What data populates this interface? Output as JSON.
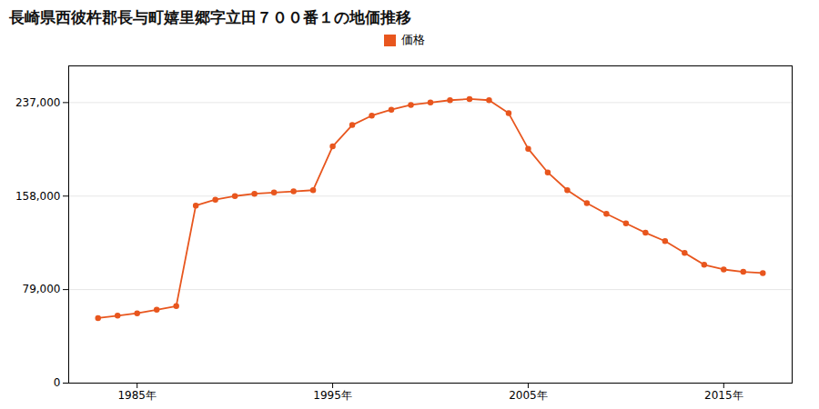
{
  "chart_data": {
    "type": "line",
    "title": "長崎県西彼杵郡長与町嬉里郷字立田７００番１の地価推移",
    "x": [
      1983,
      1984,
      1985,
      1986,
      1987,
      1988,
      1989,
      1990,
      1991,
      1992,
      1993,
      1994,
      1995,
      1996,
      1997,
      1998,
      1999,
      2000,
      2001,
      2002,
      2003,
      2004,
      2005,
      2006,
      2007,
      2008,
      2009,
      2010,
      2011,
      2012,
      2013,
      2014,
      2015,
      2016,
      2017
    ],
    "series": [
      {
        "name": "価格",
        "color": "#e8561e",
        "marker": "circle",
        "line_style": "solid",
        "values": [
          55000,
          57000,
          59000,
          62000,
          65000,
          150000,
          155000,
          158000,
          160000,
          161000,
          162000,
          163000,
          200000,
          218000,
          226000,
          231000,
          235000,
          237000,
          239000,
          240000,
          239000,
          228000,
          198000,
          178000,
          163000,
          152000,
          143000,
          135000,
          127000,
          120000,
          110000,
          100000,
          96000,
          94000,
          93000
        ]
      }
    ],
    "xlim": [
      1981.5,
      2018.5
    ],
    "xticks": [
      {
        "value": 1985,
        "label": "1985年"
      },
      {
        "value": 1995,
        "label": "1995年"
      },
      {
        "value": 2005,
        "label": "2005年"
      },
      {
        "value": 2015,
        "label": "2015年"
      }
    ],
    "ylim": [
      0,
      268000
    ],
    "yticks": [
      0,
      {
        "value": 79000,
        "label": "79,000"
      },
      {
        "value": 158000,
        "label": "158,000"
      },
      {
        "value": 237000,
        "label": "237,000"
      }
    ],
    "grid": "y",
    "legend": "top"
  }
}
